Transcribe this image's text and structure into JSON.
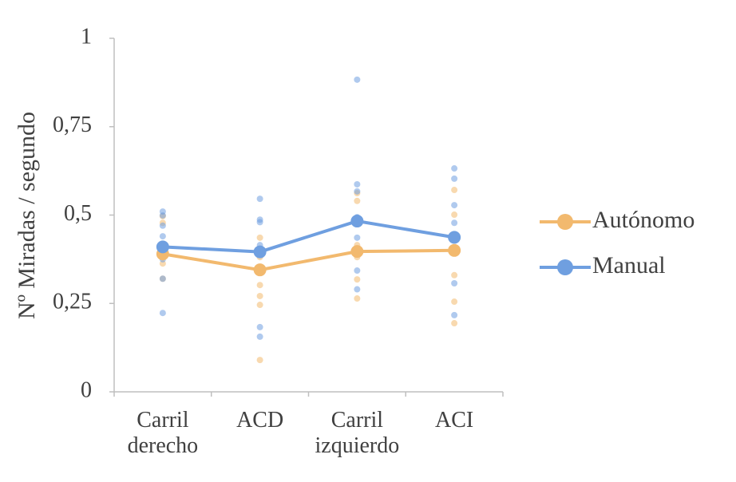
{
  "chart_data": {
    "type": "line",
    "y_label": "Nº Miradas / segundo",
    "categories": [
      "Carril derecho",
      "ACD",
      "Carril izquierdo",
      "ACI"
    ],
    "ylim": [
      0,
      1
    ],
    "yticks": [
      0,
      {
        "value": 0.25,
        "label": "0,25"
      },
      {
        "value": 0.5,
        "label": "0,5"
      },
      {
        "value": 0.75,
        "label": "0,75"
      },
      1
    ],
    "grid": false,
    "legend": "right",
    "series": [
      {
        "name": "Autónomo",
        "color": "#f2b96e",
        "values": [
          0.39,
          0.345,
          0.397,
          0.4
        ],
        "points": [
          [
            0.497,
            0.478,
            0.39,
            0.363,
            0.32
          ],
          [
            0.436,
            0.381,
            0.302,
            0.271,
            0.246,
            0.09
          ],
          [
            0.562,
            0.54,
            0.415,
            0.381,
            0.318,
            0.264
          ],
          [
            0.571,
            0.501,
            0.33,
            0.255,
            0.194
          ]
        ]
      },
      {
        "name": "Manual",
        "color": "#6f9fe0",
        "values": [
          0.41,
          0.396,
          0.483,
          0.437
        ],
        "points": [
          [
            0.51,
            0.499,
            0.47,
            0.44,
            0.375,
            0.32,
            0.223
          ],
          [
            0.546,
            0.487,
            0.48,
            0.415,
            0.183,
            0.156
          ],
          [
            0.883,
            0.587,
            0.567,
            0.494,
            0.436,
            0.343,
            0.29
          ],
          [
            0.632,
            0.603,
            0.528,
            0.478,
            0.307,
            0.217
          ]
        ]
      }
    ]
  }
}
